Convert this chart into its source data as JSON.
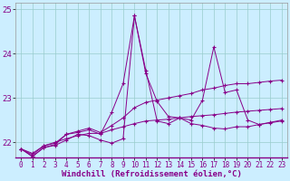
{
  "xlabel": "Windchill (Refroidissement éolien,°C)",
  "ylabel": "",
  "bg_color": "#cceeff",
  "line_color": "#880088",
  "grid_color": "#99cccc",
  "xlim": [
    -0.5,
    23.5
  ],
  "ylim": [
    21.65,
    25.15
  ],
  "yticks": [
    22,
    23,
    24,
    25
  ],
  "xticks": [
    0,
    1,
    2,
    3,
    4,
    5,
    6,
    7,
    8,
    9,
    10,
    11,
    12,
    13,
    14,
    15,
    16,
    17,
    18,
    19,
    20,
    21,
    22,
    23
  ],
  "series": [
    [
      21.85,
      21.68,
      21.88,
      21.93,
      22.05,
      22.18,
      22.15,
      22.05,
      21.98,
      22.08,
      24.85,
      23.62,
      22.48,
      22.42,
      22.55,
      22.42,
      22.38,
      22.32,
      22.3,
      22.35,
      22.35,
      22.4,
      22.44,
      22.48
    ],
    [
      21.85,
      21.68,
      21.88,
      21.95,
      22.18,
      22.22,
      22.28,
      22.18,
      22.68,
      23.32,
      24.85,
      23.55,
      22.92,
      22.58,
      22.55,
      22.5,
      22.95,
      24.15,
      23.12,
      23.18,
      22.5,
      22.4,
      22.45,
      22.5
    ],
    [
      21.85,
      21.72,
      21.92,
      21.98,
      22.18,
      22.25,
      22.32,
      22.22,
      22.38,
      22.55,
      22.78,
      22.9,
      22.95,
      23.0,
      23.05,
      23.1,
      23.18,
      23.22,
      23.28,
      23.32,
      23.32,
      23.35,
      23.38,
      23.4
    ],
    [
      21.85,
      21.75,
      21.92,
      22.0,
      22.08,
      22.15,
      22.2,
      22.2,
      22.28,
      22.35,
      22.42,
      22.48,
      22.5,
      22.52,
      22.55,
      22.58,
      22.6,
      22.62,
      22.65,
      22.68,
      22.7,
      22.72,
      22.74,
      22.76
    ]
  ],
  "font_size_xlabel": 6.5,
  "font_size_ytick": 6.5,
  "font_size_xtick": 5.5
}
